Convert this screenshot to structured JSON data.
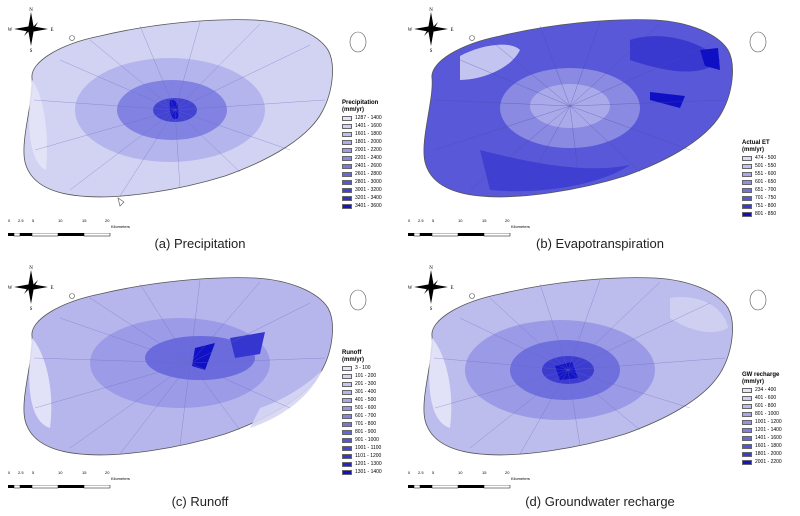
{
  "compass": {
    "n": "N",
    "s": "S",
    "e": "E",
    "w": "W"
  },
  "scale": {
    "ticks": [
      "0",
      "2.5",
      "5",
      "10",
      "15",
      "20"
    ],
    "unit": "Kilometers"
  },
  "panels": [
    {
      "caption": "(a) Precipitation",
      "legend_title": "Precipitation",
      "legend_unit": "(mm/yr)",
      "classes": [
        {
          "label": "1287 - 1400",
          "color": "#e4e4f7"
        },
        {
          "label": "1401 - 1600",
          "color": "#d2d2f3"
        },
        {
          "label": "1601 - 1800",
          "color": "#c0c0ef"
        },
        {
          "label": "1801 - 2000",
          "color": "#aeaeeb"
        },
        {
          "label": "2001 - 2200",
          "color": "#9d9de7"
        },
        {
          "label": "2201 - 2400",
          "color": "#8b8be3"
        },
        {
          "label": "2401 - 2600",
          "color": "#7979df"
        },
        {
          "label": "2601 - 2800",
          "color": "#6767db"
        },
        {
          "label": "2801 - 3000",
          "color": "#5555d7"
        },
        {
          "label": "3001 - 3200",
          "color": "#4343d3"
        },
        {
          "label": "3201 - 3400",
          "color": "#3030cf"
        },
        {
          "label": "3401 - 3600",
          "color": "#1515c8"
        }
      ]
    },
    {
      "caption": "(b) Evapotranspiration",
      "legend_title": "Actual ET",
      "legend_unit": "(mm/yr)",
      "classes": [
        {
          "label": "474 - 500",
          "color": "#dcdcf5"
        },
        {
          "label": "501 - 550",
          "color": "#c4c4f0"
        },
        {
          "label": "551 - 600",
          "color": "#aaaaea"
        },
        {
          "label": "601 - 650",
          "color": "#9090e4"
        },
        {
          "label": "651 - 700",
          "color": "#7474de"
        },
        {
          "label": "701 - 750",
          "color": "#5858d8"
        },
        {
          "label": "751 - 800",
          "color": "#3939d0"
        },
        {
          "label": "801 - 850",
          "color": "#0f0fc4"
        }
      ]
    },
    {
      "caption": "(c) Runoff",
      "legend_title": "Runoff",
      "legend_unit": "(mm/yr)",
      "classes": [
        {
          "label": "3 - 100",
          "color": "#e6e6f7"
        },
        {
          "label": "101 - 200",
          "color": "#d6d6f4"
        },
        {
          "label": "201 - 300",
          "color": "#c6c6f0"
        },
        {
          "label": "301 - 400",
          "color": "#b6b6ed"
        },
        {
          "label": "401 - 500",
          "color": "#a6a6e9"
        },
        {
          "label": "501 - 600",
          "color": "#9696e6"
        },
        {
          "label": "601 - 700",
          "color": "#8686e2"
        },
        {
          "label": "701 - 800",
          "color": "#7676df"
        },
        {
          "label": "801 - 900",
          "color": "#6666db"
        },
        {
          "label": "901 - 1000",
          "color": "#5656d8"
        },
        {
          "label": "1001 - 1100",
          "color": "#4646d4"
        },
        {
          "label": "1101 - 1200",
          "color": "#3535d0"
        },
        {
          "label": "1201 - 1300",
          "color": "#2424cc"
        },
        {
          "label": "1301 - 1400",
          "color": "#1010c6"
        }
      ]
    },
    {
      "caption": "(d) Groundwater recharge",
      "legend_title": "GW recharge",
      "legend_unit": "(mm/yr)",
      "classes": [
        {
          "label": "234 - 400",
          "color": "#e4e4f7"
        },
        {
          "label": "401 - 600",
          "color": "#d0d0f2"
        },
        {
          "label": "601 - 800",
          "color": "#bcbced"
        },
        {
          "label": "801 - 1000",
          "color": "#a8a8e9"
        },
        {
          "label": "1001 - 1200",
          "color": "#9494e5"
        },
        {
          "label": "1201 - 1400",
          "color": "#8080e1"
        },
        {
          "label": "1401 - 1600",
          "color": "#6a6adc"
        },
        {
          "label": "1601 - 1800",
          "color": "#5454d7"
        },
        {
          "label": "1801 - 2000",
          "color": "#3c3cd1"
        },
        {
          "label": "2001 - 2200",
          "color": "#1414c7"
        }
      ]
    }
  ]
}
